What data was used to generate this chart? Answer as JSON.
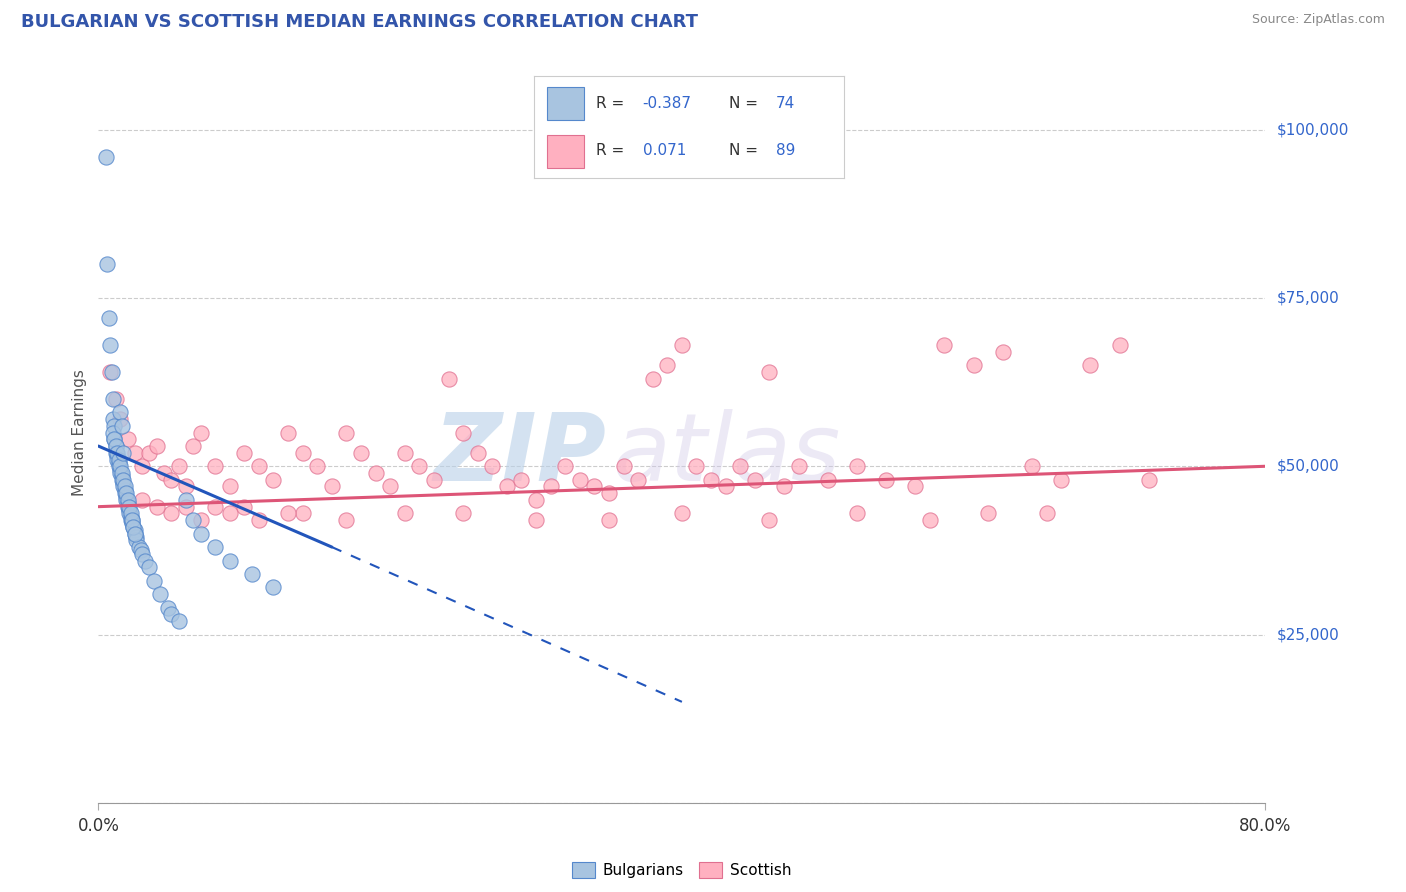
{
  "title": "BULGARIAN VS SCOTTISH MEDIAN EARNINGS CORRELATION CHART",
  "source": "Source: ZipAtlas.com",
  "ylabel": "Median Earnings",
  "xlim": [
    0.0,
    80.0
  ],
  "ylim": [
    0,
    110000
  ],
  "yticks": [
    25000,
    50000,
    75000,
    100000
  ],
  "ytick_labels": [
    "$25,000",
    "$50,000",
    "$75,000",
    "$100,000"
  ],
  "bg_color": "#ffffff",
  "grid_color": "#cccccc",
  "watermark": "ZIPatlas",
  "watermark_color": "#c5d8ee",
  "blue_scatter_x": [
    0.5,
    0.6,
    0.7,
    0.8,
    0.9,
    1.0,
    1.0,
    1.1,
    1.1,
    1.2,
    1.2,
    1.3,
    1.3,
    1.4,
    1.4,
    1.5,
    1.5,
    1.6,
    1.6,
    1.7,
    1.7,
    1.8,
    1.8,
    1.9,
    1.9,
    2.0,
    2.0,
    2.1,
    2.1,
    2.2,
    2.2,
    2.3,
    2.3,
    2.4,
    2.5,
    2.5,
    2.6,
    2.6,
    2.8,
    2.9,
    3.0,
    3.2,
    3.5,
    3.8,
    4.2,
    4.8,
    5.0,
    5.5,
    6.0,
    6.5,
    7.0,
    8.0,
    9.0,
    10.5,
    12.0,
    1.0,
    1.1,
    1.2,
    1.3,
    1.4,
    1.5,
    1.6,
    1.7,
    1.8,
    1.9,
    2.0,
    2.1,
    2.2,
    2.3,
    2.4,
    2.5,
    1.5,
    1.6,
    1.7
  ],
  "blue_scatter_y": [
    96000,
    80000,
    72000,
    68000,
    64000,
    60000,
    57000,
    56000,
    54000,
    53000,
    52000,
    51500,
    51000,
    50500,
    50000,
    49500,
    49000,
    48500,
    48000,
    47500,
    47000,
    46500,
    46000,
    45500,
    45000,
    44500,
    44000,
    43500,
    43000,
    42500,
    42000,
    42000,
    41500,
    41000,
    40500,
    40000,
    39500,
    39000,
    38000,
    37500,
    37000,
    36000,
    35000,
    33000,
    31000,
    29000,
    28000,
    27000,
    45000,
    42000,
    40000,
    38000,
    36000,
    34000,
    32000,
    55000,
    54000,
    53000,
    52000,
    51000,
    50000,
    49000,
    48000,
    47000,
    46000,
    45000,
    44000,
    43000,
    42000,
    41000,
    40000,
    58000,
    56000,
    52000
  ],
  "pink_scatter_x": [
    0.8,
    1.2,
    1.5,
    2.0,
    2.5,
    3.0,
    3.5,
    4.0,
    4.5,
    5.0,
    5.5,
    6.0,
    6.5,
    7.0,
    8.0,
    9.0,
    10.0,
    11.0,
    12.0,
    13.0,
    14.0,
    15.0,
    16.0,
    17.0,
    18.0,
    19.0,
    20.0,
    21.0,
    22.0,
    23.0,
    24.0,
    25.0,
    26.0,
    27.0,
    28.0,
    29.0,
    30.0,
    31.0,
    32.0,
    33.0,
    34.0,
    35.0,
    36.0,
    37.0,
    38.0,
    39.0,
    40.0,
    41.0,
    42.0,
    43.0,
    44.0,
    45.0,
    46.0,
    47.0,
    48.0,
    50.0,
    52.0,
    54.0,
    56.0,
    58.0,
    60.0,
    62.0,
    64.0,
    66.0,
    68.0,
    70.0,
    72.0,
    5.0,
    7.0,
    9.0,
    11.0,
    14.0,
    17.0,
    21.0,
    25.0,
    30.0,
    35.0,
    40.0,
    46.0,
    52.0,
    57.0,
    61.0,
    65.0,
    3.0,
    4.0,
    6.0,
    8.0,
    10.0,
    13.0
  ],
  "pink_scatter_y": [
    64000,
    60000,
    57000,
    54000,
    52000,
    50000,
    52000,
    53000,
    49000,
    48000,
    50000,
    47000,
    53000,
    55000,
    50000,
    47000,
    52000,
    50000,
    48000,
    55000,
    52000,
    50000,
    47000,
    55000,
    52000,
    49000,
    47000,
    52000,
    50000,
    48000,
    63000,
    55000,
    52000,
    50000,
    47000,
    48000,
    45000,
    47000,
    50000,
    48000,
    47000,
    46000,
    50000,
    48000,
    63000,
    65000,
    68000,
    50000,
    48000,
    47000,
    50000,
    48000,
    64000,
    47000,
    50000,
    48000,
    50000,
    48000,
    47000,
    68000,
    65000,
    67000,
    50000,
    48000,
    65000,
    68000,
    48000,
    43000,
    42000,
    43000,
    42000,
    43000,
    42000,
    43000,
    43000,
    42000,
    42000,
    43000,
    42000,
    43000,
    42000,
    43000,
    43000,
    45000,
    44000,
    44000,
    44000,
    44000,
    43000
  ],
  "blue_trend_x0": 0.0,
  "blue_trend_y0": 53000,
  "blue_trend_x1": 16.0,
  "blue_trend_y1": 38000,
  "blue_dash_x0": 16.0,
  "blue_dash_y0": 38000,
  "blue_dash_x1": 40.0,
  "blue_dash_y1": 15000,
  "pink_trend_x0": 0.0,
  "pink_trend_y0": 44000,
  "pink_trend_x1": 80.0,
  "pink_trend_y1": 50000,
  "blue_dot_color": "#a8c4e0",
  "blue_edge_color": "#5588cc",
  "pink_dot_color": "#ffb0c0",
  "pink_edge_color": "#e07090",
  "blue_line_color": "#2255bb",
  "pink_line_color": "#dd5577"
}
